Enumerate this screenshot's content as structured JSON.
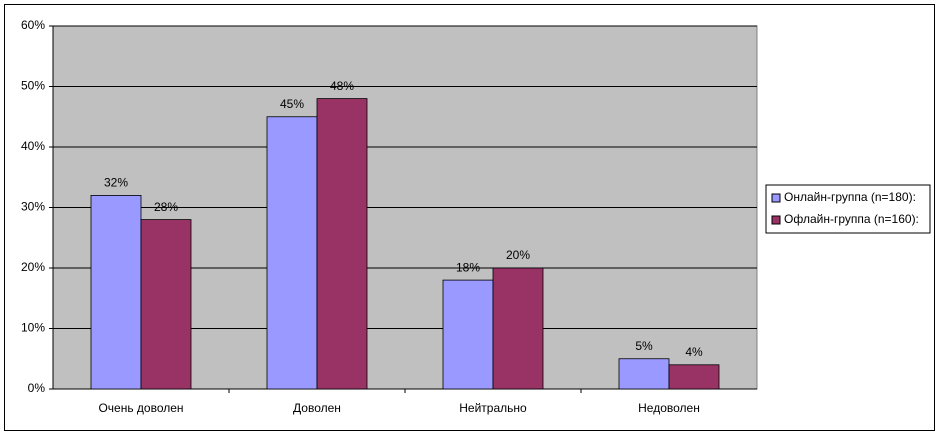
{
  "chart_data": {
    "type": "bar",
    "categories": [
      "Очень доволен",
      "Доволен",
      "Нейтрально",
      "Недоволен"
    ],
    "series": [
      {
        "name": "Онлайн-группа (n=180):",
        "color": "#9999ff",
        "values": [
          32,
          45,
          18,
          5
        ],
        "value_labels": [
          "32%",
          "45%",
          "18%",
          "5%"
        ]
      },
      {
        "name": "Офлайн-группа (n=160):",
        "color": "#993366",
        "values": [
          28,
          48,
          20,
          4
        ],
        "value_labels": [
          "28%",
          "48%",
          "20%",
          "4%"
        ]
      }
    ],
    "ylim": [
      0,
      60
    ],
    "yticks": [
      {
        "value": 0,
        "label": "0%"
      },
      {
        "value": 10,
        "label": "10%"
      },
      {
        "value": 20,
        "label": "20%"
      },
      {
        "value": 30,
        "label": "30%"
      },
      {
        "value": 40,
        "label": "40%"
      },
      {
        "value": 50,
        "label": "50%"
      },
      {
        "value": 60,
        "label": "60%"
      }
    ],
    "grid": true,
    "legend": "right",
    "plot_background": "#c0c0c0"
  }
}
